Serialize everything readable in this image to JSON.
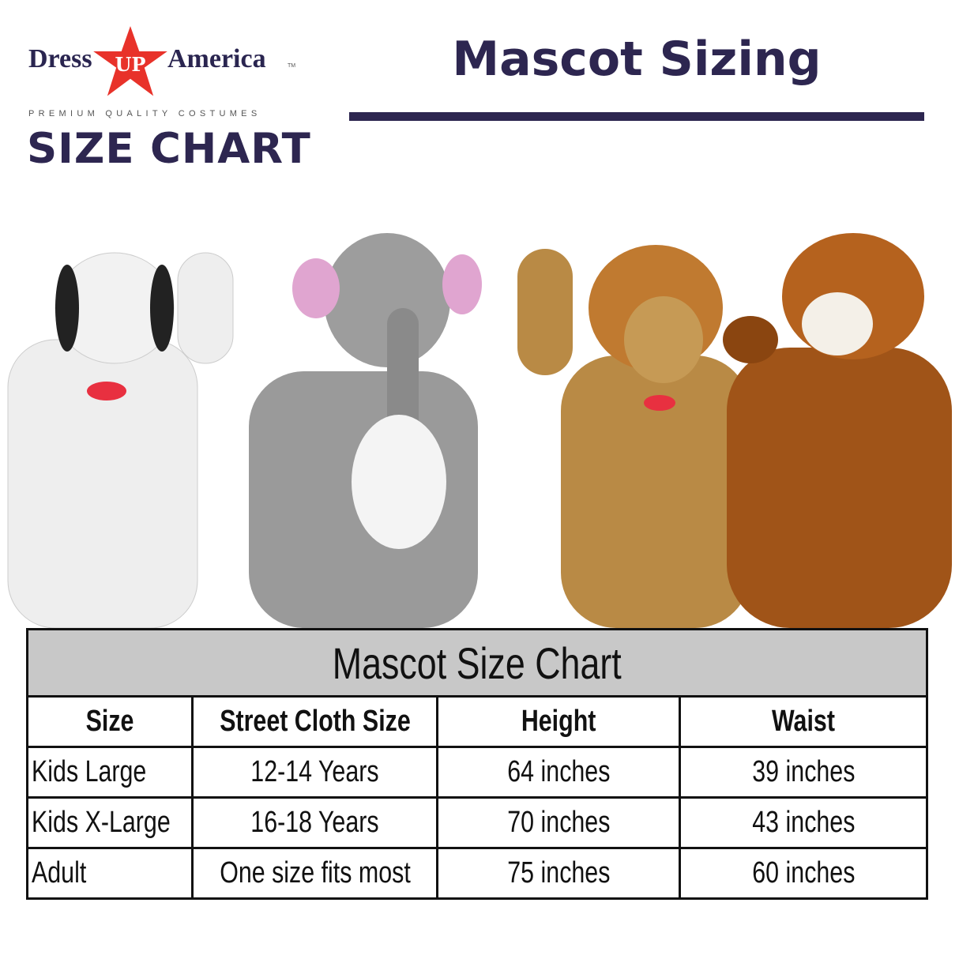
{
  "logo": {
    "brand_left": "Dress",
    "brand_star": "UP",
    "brand_right": "America",
    "trademark": "TM",
    "tagline": "PREMIUM QUALITY COSTUMES",
    "subtitle": "SIZE CHART",
    "star_color": "#e8322a",
    "brand_color": "#2d2650"
  },
  "heading": "Mascot Sizing",
  "mascots": [
    {
      "name": "dalmatian"
    },
    {
      "name": "elephant"
    },
    {
      "name": "lion"
    },
    {
      "name": "tiger"
    }
  ],
  "table": {
    "title": "Mascot Size Chart",
    "headers": [
      "Size",
      "Street Cloth Size",
      "Height",
      "Waist"
    ],
    "rows": [
      [
        "Kids Large",
        "12-14 Years",
        "64 inches",
        "39 inches"
      ],
      [
        "Kids X-Large",
        "16-18 Years",
        "70 inches",
        "43 inches"
      ],
      [
        "Adult",
        "One size fits most",
        "75 inches",
        "60 inches"
      ]
    ]
  }
}
